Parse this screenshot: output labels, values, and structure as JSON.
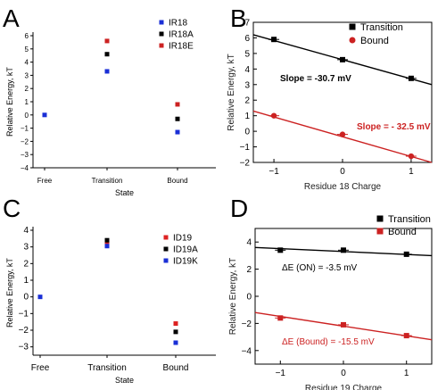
{
  "chart_data": [
    {
      "panel": "A",
      "type": "scatter",
      "categories": [
        "Free",
        "Transition",
        "Bound"
      ],
      "xlabel": "State",
      "ylabel": "Relative Energy, kT",
      "ylim": [
        -4,
        6
      ],
      "yticks": [
        -4,
        -3,
        -2,
        -1,
        0,
        1,
        2,
        3,
        4,
        5,
        6
      ],
      "grid": false,
      "legend_position": "top-right",
      "series": [
        {
          "name": "IR18",
          "color": "#1a2fd6",
          "values": [
            0,
            3.3,
            -1.3
          ]
        },
        {
          "name": "IR18A",
          "color": "#000000",
          "values": [
            null,
            4.6,
            -0.3
          ]
        },
        {
          "name": "IR18E",
          "color": "#cc2222",
          "values": [
            null,
            5.6,
            0.8
          ]
        }
      ]
    },
    {
      "panel": "B",
      "type": "scatter",
      "xlabel": "Residue 18 Charge",
      "ylabel": "Relative Energy, kT",
      "xlim": [
        -1.3,
        1.3
      ],
      "ylim": [
        -2,
        7
      ],
      "xticks": [
        -1,
        0,
        1
      ],
      "yticks": [
        -2,
        -1,
        0,
        1,
        2,
        3,
        4,
        5,
        6,
        7
      ],
      "grid": false,
      "legend_position": "top-right",
      "series": [
        {
          "name": "Transition",
          "color": "#000000",
          "marker": "square",
          "x": [
            -1,
            0,
            1
          ],
          "y": [
            5.9,
            4.6,
            3.4
          ],
          "fit": {
            "x": [
              -1.3,
              1.3
            ],
            "y": [
              6.2,
              3.0
            ]
          },
          "annotation": "Slope = -30.7 mV"
        },
        {
          "name": "Bound",
          "color": "#cc2222",
          "marker": "circle",
          "x": [
            -1,
            0,
            1
          ],
          "y": [
            1.0,
            -0.2,
            -1.6
          ],
          "fit": {
            "x": [
              -1.3,
              1.3
            ],
            "y": [
              1.3,
              -2.0
            ]
          },
          "annotation": "Slope = - 32.5 mV"
        }
      ]
    },
    {
      "panel": "C",
      "type": "scatter",
      "categories": [
        "Free",
        "Transition",
        "Bound"
      ],
      "xlabel": "State",
      "ylabel": "Relative Energy, kT",
      "ylim": [
        -3.5,
        4
      ],
      "yticks": [
        -3,
        -2,
        -1,
        0,
        1,
        2,
        3,
        4
      ],
      "grid": false,
      "legend_position": "top-right",
      "series": [
        {
          "name": "ID19",
          "color": "#dd2222",
          "values": [
            null,
            3.2,
            -1.6
          ]
        },
        {
          "name": "ID19A",
          "color": "#000000",
          "values": [
            null,
            3.4,
            -2.1
          ]
        },
        {
          "name": "ID19K",
          "color": "#1a2fd6",
          "values": [
            0,
            3.05,
            -2.75
          ]
        }
      ]
    },
    {
      "panel": "D",
      "type": "scatter",
      "xlabel": "Residue 19 Charge",
      "ylabel": "Relative Energy, kT",
      "xlim": [
        -1.4,
        1.4
      ],
      "ylim": [
        -5,
        5
      ],
      "xticks": [
        -1,
        0,
        1
      ],
      "yticks": [
        -4,
        -2,
        0,
        2,
        4
      ],
      "grid": false,
      "legend_position": "top-right",
      "series": [
        {
          "name": "Transition",
          "color": "#000000",
          "marker": "square",
          "x": [
            -1,
            0,
            1
          ],
          "y": [
            3.4,
            3.4,
            3.1
          ],
          "fit": {
            "x": [
              -1.4,
              1.4
            ],
            "y": [
              3.6,
              3.0
            ]
          },
          "annotation": "ΔE (ON)  = -3.5 mV"
        },
        {
          "name": "Bound",
          "color": "#cc2222",
          "marker": "square",
          "x": [
            -1,
            0,
            1
          ],
          "y": [
            -1.6,
            -2.1,
            -2.9
          ],
          "fit": {
            "x": [
              -1.4,
              1.4
            ],
            "y": [
              -1.2,
              -3.2
            ]
          },
          "annotation": "ΔE (Bound) = -15.5 mV"
        }
      ]
    }
  ],
  "panels": {
    "A": "A",
    "B": "B",
    "C": "C",
    "D": "D"
  }
}
